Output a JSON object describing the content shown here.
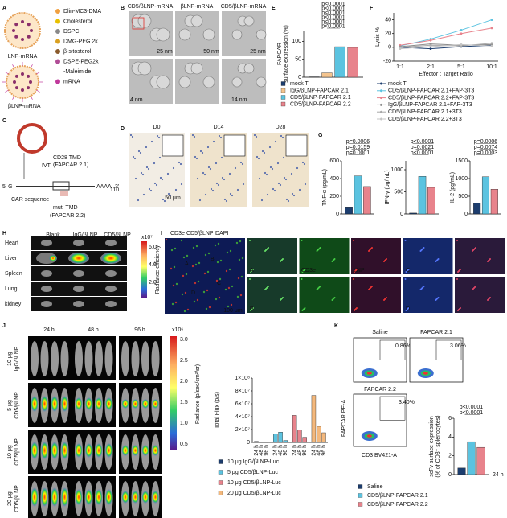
{
  "panel_labels": [
    "A",
    "B",
    "C",
    "D",
    "E",
    "F",
    "G",
    "H",
    "I",
    "J",
    "K"
  ],
  "A": {
    "components": [
      "Dlin-MC3-DMA",
      "Cholesterol",
      "DSPC",
      "DMG-PEG 2k",
      "β-sitosterol",
      "DSPE-PEG2k",
      "-Maleimide",
      "mRNA"
    ],
    "particles": [
      "LNP-mRNA",
      "βLNP-mRNA"
    ]
  },
  "B": {
    "columns": [
      "CD5/βLNP-mRNA",
      "βLNP-mRNA",
      "CD5/βLNP-mRNA"
    ],
    "scale_bars": [
      "25 nm",
      "50 nm",
      "25 nm"
    ],
    "widths": [
      "4 nm",
      "14 nm"
    ]
  },
  "C": {
    "labels": [
      "IVT",
      "CD28 TMD",
      "(FAPCAR 2.1)",
      "5' G",
      "AAAA",
      "110",
      "3'",
      "CAR sequence",
      "mut. TMD",
      "(FAPCAR 2.2)"
    ]
  },
  "D": {
    "columns": [
      "D0",
      "D14",
      "D28"
    ],
    "scale_bar": "50 μm"
  },
  "H": {
    "rows": [
      "Heart",
      "Liver",
      "Spleen",
      "Lung",
      "kidney"
    ],
    "columns": [
      "Blank",
      "IgG/βLNP",
      "CD5/βLNP"
    ],
    "colorbar": {
      "multiplier": "x10⁷",
      "ticks": [
        "6.0",
        "4.0",
        "2.0"
      ],
      "label": "Radiance efficiency"
    }
  },
  "I": {
    "legend": [
      "CD3e",
      "CD5/βLNP",
      "DAPI"
    ],
    "regions": [
      "A",
      "B",
      "C",
      "D"
    ],
    "channels": [
      "CD3e",
      "LNP"
    ],
    "scale_bar": "100 μm"
  },
  "J": {
    "timepoints": [
      "24 h",
      "48 h",
      "96 h"
    ],
    "rows": [
      [
        "10 μg",
        "IgG/βLNP"
      ],
      [
        "5 μg",
        "CD5/βLNP"
      ],
      [
        "10 μg",
        "CD5/βLNP"
      ],
      [
        "20 μg",
        "CD5/βLNP"
      ]
    ],
    "colorbar": {
      "multiplier": "x10⁶",
      "ticks": [
        "3.0",
        "2.5",
        "2.0",
        "1.5",
        "1.0",
        "0.5"
      ],
      "label": "Radiance (p/sec/cm²/sr)"
    }
  },
  "K": {
    "plots": [
      {
        "title": "Saline",
        "gate": "0.86%"
      },
      {
        "title": "FAPCAR 2.1",
        "gate": "3.06%"
      },
      {
        "title": "FAPCAR 2.2",
        "gate": "3.40%"
      }
    ],
    "y_axis": "FAPCAR PE-A",
    "x_axis": "CD3 BV421-A",
    "timepoint": "24 h"
  },
  "chart_data": [
    {
      "type": "bar",
      "ylabel": [
        "FAPCAR",
        "surface expression (%)"
      ],
      "ylim": [
        0,
        130
      ],
      "yticks": [
        0,
        50,
        100
      ],
      "series": [
        {
          "name": "mock T",
          "color": "#1c3d6e",
          "values": [
            1
          ]
        },
        {
          "name": "IgG/βLNP-FAPCAR 2.1",
          "color": "#f4c48e",
          "values": [
            12
          ]
        },
        {
          "name": "CD5/βLNP-FAPCAR 2.1",
          "color": "#5bc3e0",
          "values": [
            85
          ]
        },
        {
          "name": "CD5/βLNP-FAPCAR 2.2",
          "color": "#e8838c",
          "values": [
            83
          ]
        }
      ],
      "annotations": [
        "p<0.0001",
        "p<0.0001",
        "p<0.0001",
        "p<0.0001",
        "p<0.0001",
        "p<0.0001"
      ]
    },
    {
      "type": "line",
      "ylabel": "Lysis %",
      "xlabel": "Effector : Target Ratio",
      "categories": [
        "1:1",
        "2:1",
        "5:1",
        "10:1"
      ],
      "ylim": [
        -20,
        50
      ],
      "yticks": [
        -20,
        0,
        20,
        40
      ],
      "series": [
        {
          "name": "mock T",
          "color": "#1c3d6e",
          "values": [
            0,
            -2,
            1,
            3
          ]
        },
        {
          "name": "CD5/βLNP-FAPCAR 2.1+FAP-3T3",
          "color": "#5bc3e0",
          "values": [
            2,
            12,
            25,
            40
          ]
        },
        {
          "name": "CD5/βLNP-FAPCAR 2.2+FAP-3T3",
          "color": "#e8838c",
          "values": [
            3,
            10,
            20,
            28
          ]
        },
        {
          "name": "IgG/βLNP-FAPCAR 2.1+FAP-3T3",
          "color": "#8c8c8c",
          "values": [
            1,
            5,
            3,
            4
          ]
        },
        {
          "name": "CD5/βLNP-FAPCAR 2.1+3T3",
          "color": "#a8a8a8",
          "values": [
            0,
            3,
            2,
            6
          ]
        },
        {
          "name": "CD5/βLNP-FAPCAR 2.2+3T3",
          "color": "#c4c4c4",
          "values": [
            -2,
            1,
            4,
            2
          ]
        }
      ]
    },
    {
      "type": "bar",
      "ylabel": "TNF-α (pg/mL)",
      "ylim": [
        0,
        600
      ],
      "yticks": [
        0,
        200,
        400,
        600
      ],
      "values": [
        80,
        430,
        310
      ],
      "colors": [
        "#1c3d6e",
        "#5bc3e0",
        "#e8838c"
      ],
      "annotations": [
        "p=0.0006",
        "p=0.0159",
        "p=0.0001"
      ]
    },
    {
      "type": "bar",
      "ylabel": "IFN-γ (pg/mL)",
      "ylim": [
        0,
        1200
      ],
      "yticks": [
        0,
        500,
        1000
      ],
      "values": [
        20,
        850,
        600
      ],
      "colors": [
        "#1c3d6e",
        "#5bc3e0",
        "#e8838c"
      ],
      "annotations": [
        "p<0.0001",
        "p=0.0021",
        "p<0.0001"
      ]
    },
    {
      "type": "bar",
      "ylabel": "IL-2 (pg/mL)",
      "ylim": [
        0,
        1500
      ],
      "yticks": [
        0,
        500,
        1000,
        1500
      ],
      "values": [
        300,
        1050,
        700
      ],
      "colors": [
        "#1c3d6e",
        "#5bc3e0",
        "#e8838c"
      ],
      "annotations": [
        "p=0.0006",
        "p=0.0074",
        "p=0.0003"
      ]
    },
    {
      "type": "bar",
      "ylabel": "Total Flux (p/s)",
      "categories": [
        "24 h",
        "48 h",
        "96 h"
      ],
      "ylim": [
        0,
        100000000
      ],
      "yticks": [
        0,
        {
          "value": 20000000,
          "label": "2×10⁷"
        },
        {
          "value": 40000000,
          "label": "4×10⁷"
        },
        {
          "value": 60000000,
          "label": "6×10⁷"
        },
        {
          "value": 80000000,
          "label": "8×10⁷"
        },
        {
          "value": 100000000,
          "label": "1×10⁸"
        }
      ],
      "series": [
        {
          "name": "10 μg IgG/βLNP-Luc",
          "color": "#1c3d6e",
          "values": [
            1500000,
            1000000,
            1000000
          ]
        },
        {
          "name": "5 μg CD5/βLNP-Luc",
          "color": "#5bc3e0",
          "values": [
            13000000,
            16000000,
            3000000
          ]
        },
        {
          "name": "10 μg CD5/βLNP-Luc",
          "color": "#e8838c",
          "values": [
            42000000,
            19000000,
            8000000
          ]
        },
        {
          "name": "20 μg CD5/βLNP-Luc",
          "color": "#f4b87c",
          "values": [
            73000000,
            25000000,
            15000000
          ]
        }
      ]
    },
    {
      "type": "bar",
      "ylabel": [
        "scFv surface expression",
        "(% of CD3⁺ splenocytes)"
      ],
      "ylim": [
        0,
        6
      ],
      "yticks": [
        0,
        2,
        4,
        6
      ],
      "series": [
        {
          "name": "Saline",
          "color": "#1c3d6e",
          "values": [
            0.7
          ]
        },
        {
          "name": "CD5/βLNP-FAPCAR 2.1",
          "color": "#5bc3e0",
          "values": [
            3.5
          ]
        },
        {
          "name": "CD5/βLNP-FAPCAR 2.2",
          "color": "#e8838c",
          "values": [
            2.9
          ]
        }
      ],
      "annotations": [
        "p<0.0001",
        "p<0.0001"
      ]
    }
  ]
}
